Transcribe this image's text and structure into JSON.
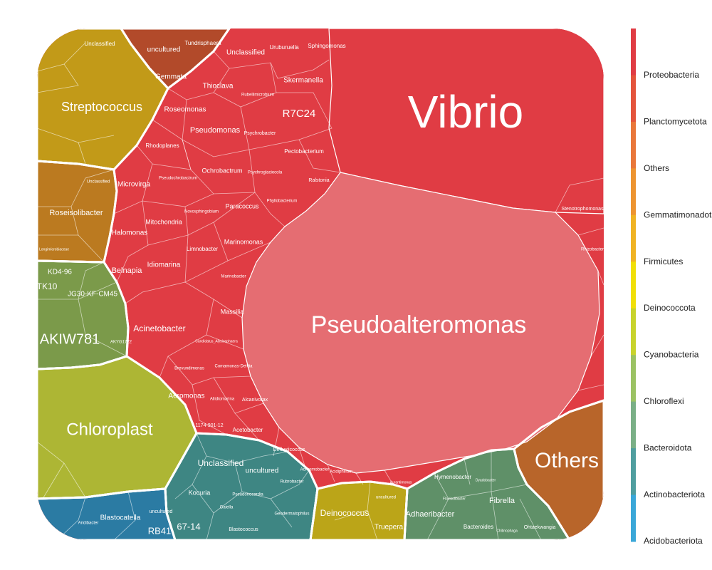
{
  "chart_data": {
    "type": "voronoi-treemap",
    "legend": {
      "placement": "right",
      "entries": [
        {
          "name": "Proteobacteria",
          "color": "#e03c44"
        },
        {
          "name": "Planctomycetota",
          "color": "#e4543c"
        },
        {
          "name": "Others",
          "color": "#e9773a"
        },
        {
          "name": "Gemmatimonadota",
          "color": "#ed9430"
        },
        {
          "name": "Firmicutes",
          "color": "#f0b323"
        },
        {
          "name": "Deinococcota",
          "color": "#f1df07"
        },
        {
          "name": "Cyanobacteria",
          "color": "#c8d32c"
        },
        {
          "name": "Chloroflexi",
          "color": "#9bc263"
        },
        {
          "name": "Bacteroidota",
          "color": "#7aaf86"
        },
        {
          "name": "Actinobacteriota",
          "color": "#4f9e9f"
        },
        {
          "name": "Acidobacteriota",
          "color": "#3aa7d8"
        }
      ]
    },
    "groups": [
      {
        "phylum": "Proteobacteria",
        "fill": "#e03c44",
        "cells": [
          {
            "label": "Vibrio"
          },
          {
            "label": "Pseudoalteromonas",
            "fill": "#e56d72"
          },
          {
            "label": "R7C24"
          },
          {
            "label": "Skermanella"
          },
          {
            "label": "Uruburuella"
          },
          {
            "label": "Sphingomonas"
          },
          {
            "label": "Unclassified"
          },
          {
            "label": "Thioclava"
          },
          {
            "label": "Rubellimicrobium"
          },
          {
            "label": "Roseomonas"
          },
          {
            "label": "Pseudomonas"
          },
          {
            "label": "Psychrobacter"
          },
          {
            "label": "Pectobacterium"
          },
          {
            "label": "Rhodoplanes"
          },
          {
            "label": "Ochrobactrum"
          },
          {
            "label": "Psychroglaciecola"
          },
          {
            "label": "Ralstonia"
          },
          {
            "label": "Pseudochrobactrum"
          },
          {
            "label": "Microvirga"
          },
          {
            "label": "Novosphingobium"
          },
          {
            "label": "Paracoccus"
          },
          {
            "label": "Phyllobacterium"
          },
          {
            "label": "Mitochondria"
          },
          {
            "label": "Halomonas"
          },
          {
            "label": "Marinomonas"
          },
          {
            "label": "Limnobacter"
          },
          {
            "label": "Belnapia"
          },
          {
            "label": "Idiomarina"
          },
          {
            "label": "Marinobacter"
          },
          {
            "label": "Acinetobacter"
          },
          {
            "label": "Massilia"
          },
          {
            "label": "Candidatus_Alysiosphaera"
          },
          {
            "label": "Brevundimonas"
          },
          {
            "label": "Comamonas-Delftia"
          },
          {
            "label": "Aeromonas"
          },
          {
            "label": "Aliidiomarina"
          },
          {
            "label": "Alcanivorax"
          },
          {
            "label": "1174-901-12"
          },
          {
            "label": "Acetobacter"
          },
          {
            "label": "Defluviicoccus"
          },
          {
            "label": "Achromobacter"
          },
          {
            "label": "Acidiphilium"
          },
          {
            "label": "Aurantimonas"
          },
          {
            "label": "Stenotrophomonas"
          },
          {
            "label": "Rhizobacter"
          }
        ]
      },
      {
        "phylum": "Planctomycetota",
        "fill": "#b24a2a",
        "cells": [
          {
            "label": "uncultured"
          },
          {
            "label": "Tundrisphaera"
          },
          {
            "label": "Gemmata"
          }
        ]
      },
      {
        "phylum": "Firmicutes",
        "fill": "#c29a18",
        "cells": [
          {
            "label": "Streptococcus"
          },
          {
            "label": "Unclassified"
          }
        ]
      },
      {
        "phylum": "Gemmatimonadota",
        "fill": "#bb7a20",
        "cells": [
          {
            "label": "Roseisolibacter"
          },
          {
            "label": "Unclassified"
          },
          {
            "label": "Longimicrobiaceae"
          }
        ]
      },
      {
        "phylum": "Chloroflexi",
        "fill": "#7b9a4a",
        "cells": [
          {
            "label": "KD4-96"
          },
          {
            "label": "TK10"
          },
          {
            "label": "JG30-KF-CM45"
          },
          {
            "label": "AKIW781"
          },
          {
            "label": "AKYG1722"
          }
        ]
      },
      {
        "phylum": "Cyanobacteria",
        "fill": "#adb634",
        "cells": [
          {
            "label": "Chloroplast"
          }
        ]
      },
      {
        "phylum": "Actinobacteriota",
        "fill": "#3e8683",
        "cells": [
          {
            "label": "Unclassified"
          },
          {
            "label": "uncultured"
          },
          {
            "label": "Kocuria"
          },
          {
            "label": "67-14"
          },
          {
            "label": "Gaiella"
          },
          {
            "label": "Pseudonocardia"
          },
          {
            "label": "Blastococcus"
          },
          {
            "label": "Geodermatophilus"
          },
          {
            "label": "Rubrobacter"
          }
        ]
      },
      {
        "phylum": "Acidobacteriota",
        "fill": "#2b7ba3",
        "cells": [
          {
            "label": "Blastocatella"
          },
          {
            "label": "RB41"
          },
          {
            "label": "uncultured"
          },
          {
            "label": "Aridibacter"
          }
        ]
      },
      {
        "phylum": "Deinococcota",
        "fill": "#bba518",
        "cells": [
          {
            "label": "Deinococcus"
          },
          {
            "label": "Truepera"
          },
          {
            "label": "uncultured"
          }
        ]
      },
      {
        "phylum": "Bacteroidota",
        "fill": "#5f9068",
        "cells": [
          {
            "label": "Hymenobacter"
          },
          {
            "label": "Adhaeribacter"
          },
          {
            "label": "Fibrella"
          },
          {
            "label": "Bacteroides"
          },
          {
            "label": "Chitinophaga"
          },
          {
            "label": "Dyadobacter"
          },
          {
            "label": "Ohtaekwangia"
          },
          {
            "label": "Flavisolibacter"
          }
        ]
      },
      {
        "phylum": "Others",
        "fill": "#b8652a",
        "cells": [
          {
            "label": "Others"
          }
        ]
      }
    ]
  }
}
